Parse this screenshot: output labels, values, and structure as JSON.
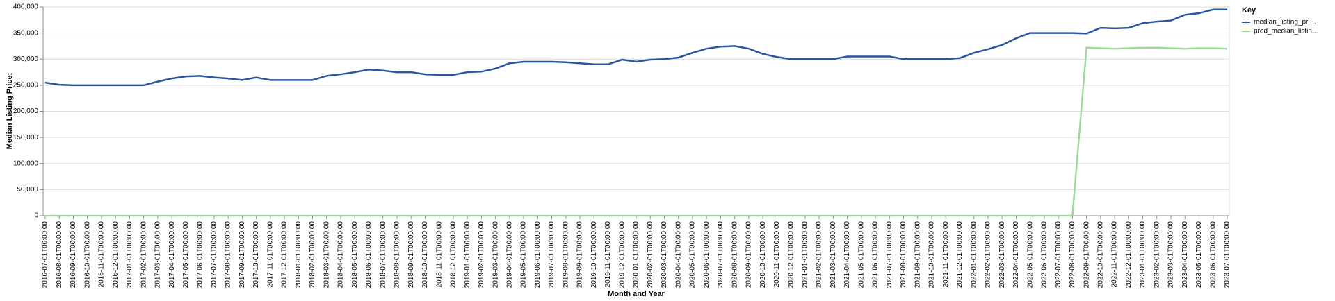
{
  "chart_data": {
    "type": "line",
    "xlabel": "Month and Year",
    "ylabel": "Median Listing Price:",
    "legend_title": "Key",
    "legend": "top-right",
    "grid": true,
    "categories": [
      "2016-07-01T00:00:00",
      "2016-08-01T00:00:00",
      "2016-09-01T00:00:00",
      "2016-10-01T00:00:00",
      "2016-11-01T00:00:00",
      "2016-12-01T00:00:00",
      "2017-01-01T00:00:00",
      "2017-02-01T00:00:00",
      "2017-03-01T00:00:00",
      "2017-04-01T00:00:00",
      "2017-05-01T00:00:00",
      "2017-06-01T00:00:00",
      "2017-07-01T00:00:00",
      "2017-08-01T00:00:00",
      "2017-09-01T00:00:00",
      "2017-10-01T00:00:00",
      "2017-11-01T00:00:00",
      "2017-12-01T00:00:00",
      "2018-01-01T00:00:00",
      "2018-02-01T00:00:00",
      "2018-03-01T00:00:00",
      "2018-04-01T00:00:00",
      "2018-05-01T00:00:00",
      "2018-06-01T00:00:00",
      "2018-07-01T00:00:00",
      "2018-08-01T00:00:00",
      "2018-09-01T00:00:00",
      "2018-10-01T00:00:00",
      "2018-11-01T00:00:00",
      "2018-12-01T00:00:00",
      "2019-01-01T00:00:00",
      "2019-02-01T00:00:00",
      "2019-03-01T00:00:00",
      "2019-04-01T00:00:00",
      "2019-05-01T00:00:00",
      "2019-06-01T00:00:00",
      "2019-07-01T00:00:00",
      "2019-08-01T00:00:00",
      "2019-09-01T00:00:00",
      "2019-10-01T00:00:00",
      "2019-11-01T00:00:00",
      "2019-12-01T00:00:00",
      "2020-01-01T00:00:00",
      "2020-02-01T00:00:00",
      "2020-03-01T00:00:00",
      "2020-04-01T00:00:00",
      "2020-05-01T00:00:00",
      "2020-06-01T00:00:00",
      "2020-07-01T00:00:00",
      "2020-08-01T00:00:00",
      "2020-09-01T00:00:00",
      "2020-10-01T00:00:00",
      "2020-11-01T00:00:00",
      "2020-12-01T00:00:00",
      "2021-01-01T00:00:00",
      "2021-02-01T00:00:00",
      "2021-03-01T00:00:00",
      "2021-04-01T00:00:00",
      "2021-05-01T00:00:00",
      "2021-06-01T00:00:00",
      "2021-07-01T00:00:00",
      "2021-08-01T00:00:00",
      "2021-09-01T00:00:00",
      "2021-10-01T00:00:00",
      "2021-11-01T00:00:00",
      "2021-12-01T00:00:00",
      "2022-01-01T00:00:00",
      "2022-02-01T00:00:00",
      "2022-03-01T00:00:00",
      "2022-04-01T00:00:00",
      "2022-05-01T00:00:00",
      "2022-06-01T00:00:00",
      "2022-07-01T00:00:00",
      "2022-08-01T00:00:00",
      "2022-09-01T00:00:00",
      "2022-10-01T00:00:00",
      "2022-11-01T00:00:00",
      "2022-12-01T00:00:00",
      "2023-01-01T00:00:00",
      "2023-02-01T00:00:00",
      "2023-03-01T00:00:00",
      "2023-04-01T00:00:00",
      "2023-05-01T00:00:00",
      "2023-06-01T00:00:00",
      "2023-07-01T00:00:00"
    ],
    "series": [
      {
        "name": "median_listing_pri…",
        "color": "#2c55a0",
        "values": [
          255000,
          251000,
          250000,
          250000,
          250000,
          250000,
          250000,
          250000,
          257000,
          263000,
          267000,
          268000,
          265000,
          263000,
          260000,
          265000,
          260000,
          260000,
          260000,
          260000,
          268000,
          271000,
          275000,
          280000,
          278000,
          275000,
          275000,
          271000,
          270000,
          270000,
          275000,
          276000,
          282000,
          292000,
          295000,
          295000,
          295000,
          294000,
          292000,
          290000,
          290000,
          299000,
          295000,
          299000,
          300000,
          303000,
          312000,
          320000,
          324000,
          325000,
          320000,
          310000,
          304000,
          300000,
          300000,
          300000,
          300000,
          305000,
          305000,
          305000,
          305000,
          300000,
          300000,
          300000,
          300000,
          302000,
          312000,
          319000,
          327000,
          340000,
          350000,
          350000,
          350000,
          350000,
          349000,
          360000,
          359000,
          360000,
          369000,
          372000,
          374000,
          385000,
          388000,
          395000,
          395000
        ]
      },
      {
        "name": "pred_median_listin…",
        "color": "#a1d99b",
        "values": [
          0,
          0,
          0,
          0,
          0,
          0,
          0,
          0,
          0,
          0,
          0,
          0,
          0,
          0,
          0,
          0,
          0,
          0,
          0,
          0,
          0,
          0,
          0,
          0,
          0,
          0,
          0,
          0,
          0,
          0,
          0,
          0,
          0,
          0,
          0,
          0,
          0,
          0,
          0,
          0,
          0,
          0,
          0,
          0,
          0,
          0,
          0,
          0,
          0,
          0,
          0,
          0,
          0,
          0,
          0,
          0,
          0,
          0,
          0,
          0,
          0,
          0,
          0,
          0,
          0,
          0,
          0,
          0,
          0,
          0,
          0,
          0,
          0,
          0,
          322000,
          321000,
          320000,
          321000,
          322000,
          322000,
          321000,
          320000,
          321000,
          321000,
          320000
        ]
      }
    ],
    "ylim": [
      0,
      400000
    ],
    "yticks": [
      0,
      {
        "value": 50000,
        "label": "50,000"
      },
      {
        "value": 100000,
        "label": "100,000"
      },
      {
        "value": 150000,
        "label": "150,000"
      },
      {
        "value": 200000,
        "label": "200,000"
      },
      {
        "value": 250000,
        "label": "250,000"
      },
      {
        "value": 300000,
        "label": "300,000"
      },
      {
        "value": 350000,
        "label": "350,000"
      },
      {
        "value": 400000,
        "label": "400,000"
      }
    ]
  }
}
